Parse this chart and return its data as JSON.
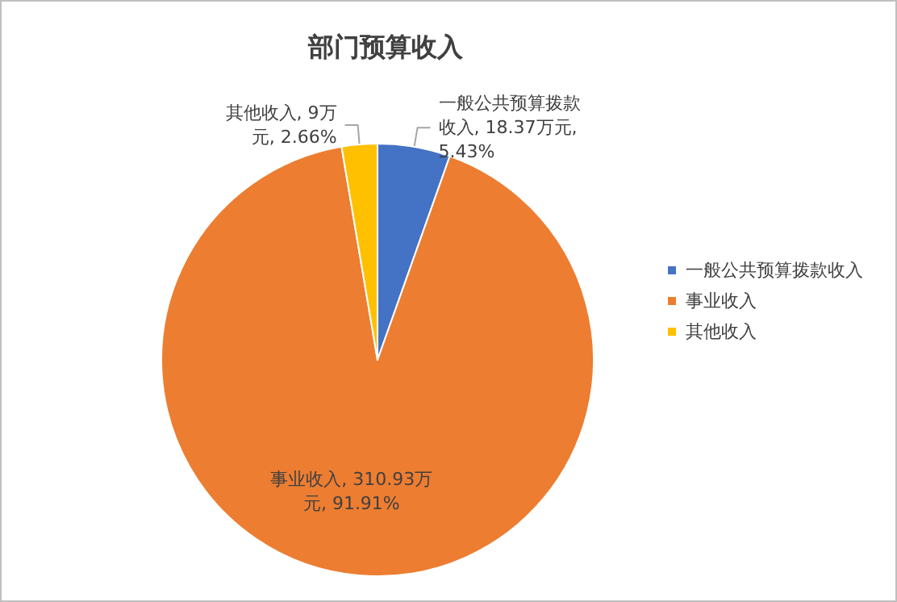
{
  "chart_data": {
    "type": "pie",
    "title": "部门预算收入",
    "categories": [
      "一般公共预算拨款收入",
      "事业收入",
      "其他收入"
    ],
    "values": [
      18.37,
      310.93,
      9
    ],
    "colors": [
      "#4472c4",
      "#ed7d31",
      "#ffc000"
    ],
    "value_labels": [
      "一般公共预算拨款收入, 18.37万元, 5.43%",
      "事业收入, 310.93万元, 91.91%",
      "其他收入, 9万元, 2.66%"
    ],
    "legend": "right"
  }
}
